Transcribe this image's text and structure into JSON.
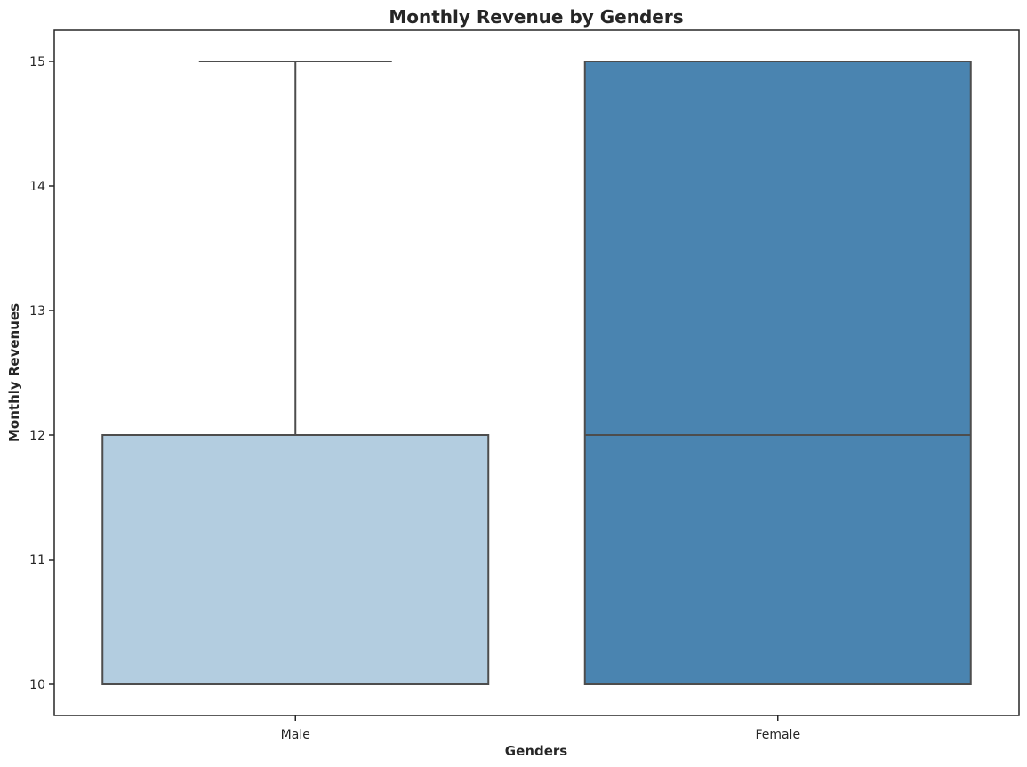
{
  "chart_data": {
    "type": "box",
    "title": "Monthly Revenue by Genders",
    "xlabel": "Genders",
    "ylabel": "Monthly Revenues",
    "ylim": [
      9.75,
      15.25
    ],
    "yticks": [
      10,
      11,
      12,
      13,
      14,
      15
    ],
    "categories": [
      "Male",
      "Female"
    ],
    "boxes": [
      {
        "category": "Male",
        "min": 10,
        "q1": 10,
        "median": 10,
        "q3": 12,
        "max": 15,
        "color": "#b3cde0"
      },
      {
        "category": "Female",
        "min": 10,
        "q1": 10,
        "median": 12,
        "q3": 15,
        "max": 15,
        "color": "#4a84b0"
      }
    ],
    "grid": false,
    "legend": "none",
    "line_color": "#4d4d4d",
    "axes_color": "#262626"
  }
}
